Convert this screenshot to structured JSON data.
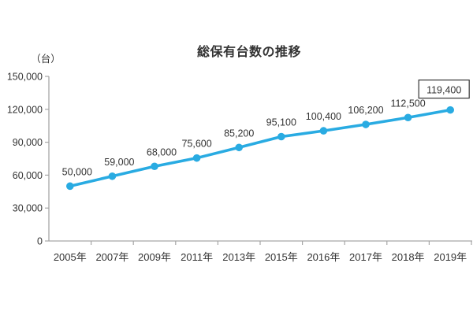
{
  "chart_data": {
    "type": "line",
    "title": "総保有台数の推移",
    "unit_label": "（台）",
    "categories": [
      "2005年",
      "2007年",
      "2009年",
      "2011年",
      "2013年",
      "2015年",
      "2016年",
      "2017年",
      "2018年",
      "2019年"
    ],
    "values": [
      50000,
      59000,
      68000,
      75600,
      85200,
      95100,
      100400,
      106200,
      112500,
      119400
    ],
    "data_labels": [
      "50,000",
      "59,000",
      "68,000",
      "75,600",
      "85,200",
      "95,100",
      "100,400",
      "106,200",
      "112,500",
      "119,400"
    ],
    "last_label_boxed": true,
    "ylim": [
      0,
      150000
    ],
    "y_ticks": [
      0,
      30000,
      60000,
      90000,
      120000,
      150000
    ],
    "y_tick_labels": [
      "0",
      "30,000",
      "60,000",
      "90,000",
      "120,000",
      "150,000"
    ],
    "grid": false,
    "legend": "none",
    "line_color": "#29abe2",
    "marker_color": "#29abe2",
    "text_color": "#333333",
    "axis_color": "#a6a6a6",
    "box_border_color": "#333333",
    "box_fill": "#ffffff"
  }
}
